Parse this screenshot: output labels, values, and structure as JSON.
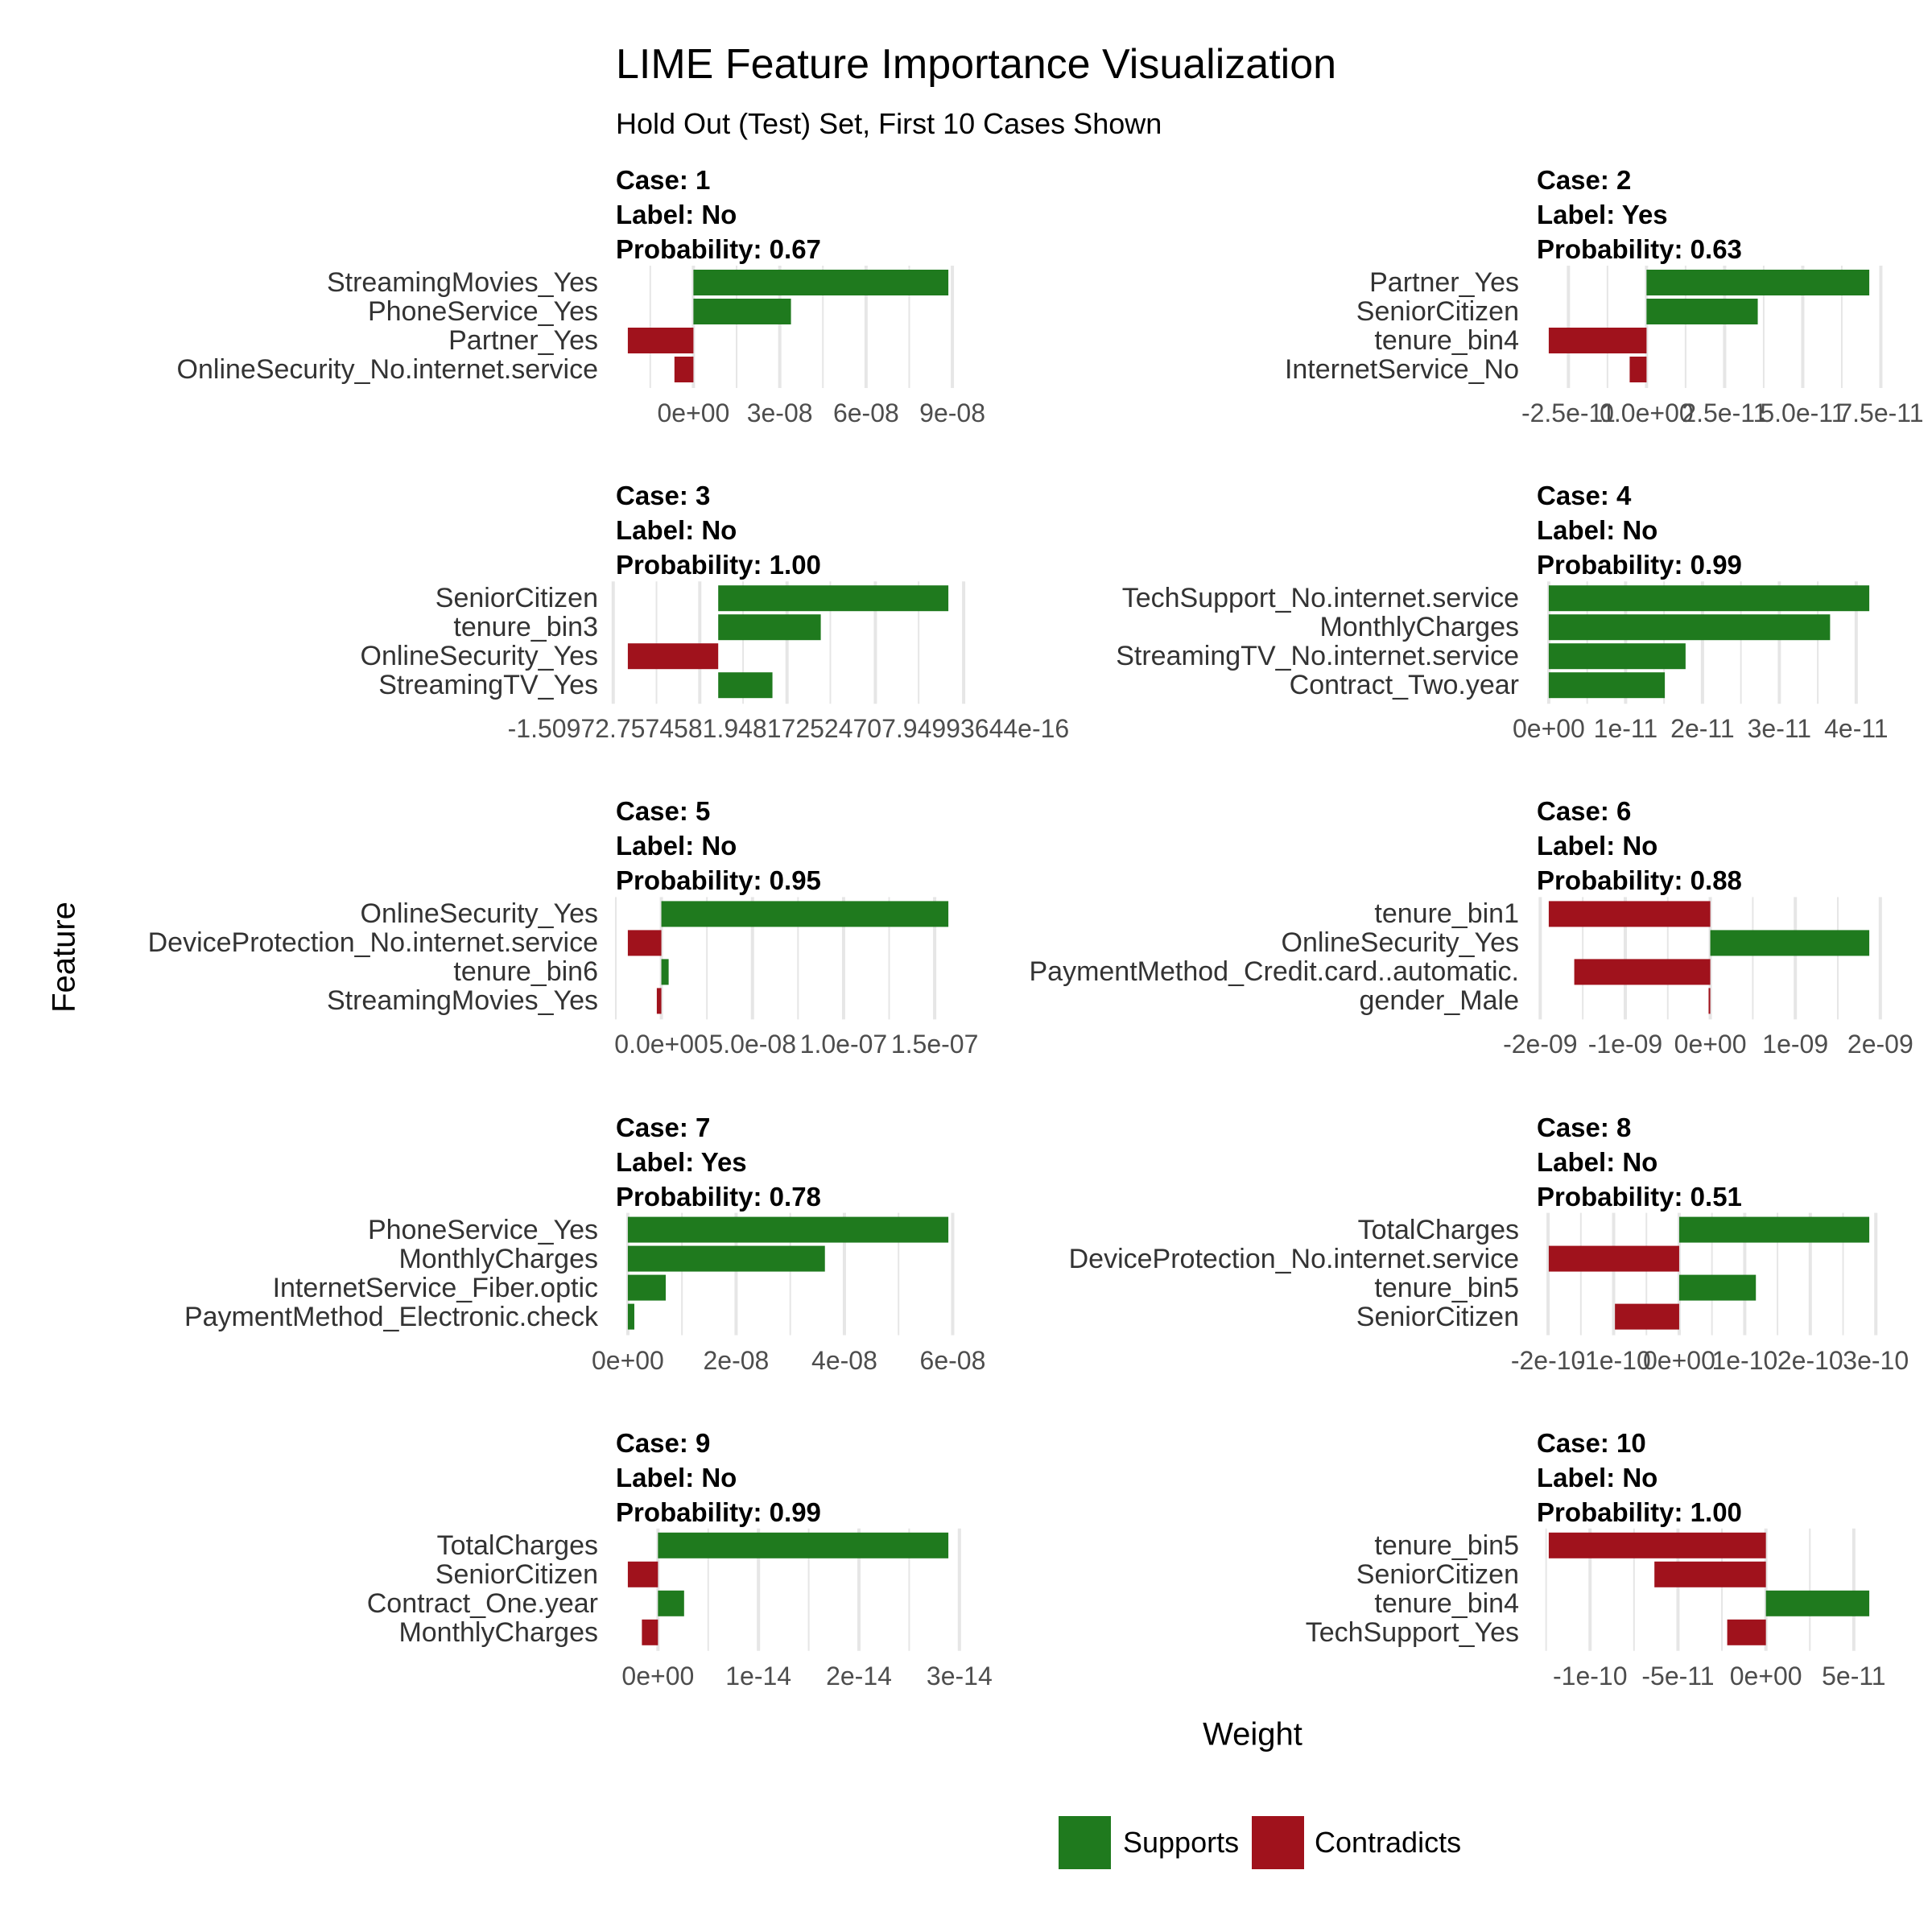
{
  "title": "LIME Feature Importance Visualization",
  "subtitle": "Hold Out (Test) Set, First 10 Cases Shown",
  "y_axis_label": "Feature",
  "x_axis_label": "Weight",
  "legend": {
    "items": [
      {
        "label": "Supports",
        "color": "#1f7a1e"
      },
      {
        "label": "Contradicts",
        "color": "#a0121c"
      }
    ]
  },
  "colors": {
    "gridline": "#e6e6e6",
    "supports": "#1f7a1e",
    "contradicts": "#a0121c"
  },
  "chart_data": [
    {
      "type": "bar",
      "case_title": "Case: 1",
      "label_title": "Label: No",
      "probability_title": "Probability: 0.67",
      "features": [
        "StreamingMovies_Yes",
        "PhoneService_Yes",
        "Partner_Yes",
        "OnlineSecurity_No.internet.service"
      ],
      "values": [
        8.86e-08,
        3.39e-08,
        -2.28e-08,
        -6.6e-09
      ],
      "ticks": [
        0,
        3e-08,
        6e-08,
        9e-08
      ],
      "tick_labels": [
        "0e+00",
        "3e-08",
        "6e-08",
        "9e-08"
      ]
    },
    {
      "type": "bar",
      "case_title": "Case: 2",
      "label_title": "Label: Yes",
      "probability_title": "Probability: 0.63",
      "features": [
        "Partner_Yes",
        "SeniorCitizen",
        "tenure_bin4",
        "InternetService_No"
      ],
      "values": [
        7.13e-11,
        3.56e-11,
        -3.13e-11,
        -5.4e-12
      ],
      "ticks": [
        -2.5e-11,
        0,
        2.5e-11,
        5e-11,
        7.5e-11
      ],
      "tick_labels": [
        "-2.5e-11",
        "0.0e+00",
        "2.5e-11",
        "5.0e-11",
        "7.5e-11"
      ]
    },
    {
      "type": "bar",
      "case_title": "Case: 3",
      "label_title": "Label: No",
      "probability_title": "Probability: 1.00",
      "features": [
        "SeniorCitizen",
        "tenure_bin3",
        "OnlineSecurity_Yes",
        "StreamingTV_Yes"
      ],
      "values": [
        3.31e-16,
        1.475e-16,
        -1.3e-16,
        7.8e-17
      ],
      "ticks": [
        -1.51e-16,
        -2.65e-17,
        9.9e-17,
        2.26e-16,
        3.53e-16
      ],
      "tick_labels_overlapped": "-1.50972.7574581.948172524707.94993644e-16"
    },
    {
      "type": "bar",
      "case_title": "Case: 4",
      "label_title": "Label: No",
      "probability_title": "Probability: 0.99",
      "features": [
        "TechSupport_No.internet.service",
        "MonthlyCharges",
        "StreamingTV_No.internet.service",
        "Contract_Two.year"
      ],
      "values": [
        4.17e-11,
        3.66e-11,
        1.78e-11,
        1.51e-11
      ],
      "ticks": [
        0,
        1e-11,
        2e-11,
        3e-11,
        4e-11
      ],
      "tick_labels": [
        "0e+00",
        "1e-11",
        "2e-11",
        "3e-11",
        "4e-11"
      ]
    },
    {
      "type": "bar",
      "case_title": "Case: 5",
      "label_title": "Label: No",
      "probability_title": "Probability: 0.95",
      "features": [
        "OnlineSecurity_Yes",
        "DeviceProtection_No.internet.service",
        "tenure_bin6",
        "StreamingMovies_Yes"
      ],
      "values": [
        1.575e-07,
        -1.84e-08,
        4e-09,
        -2.5e-09
      ],
      "ticks": [
        0,
        5e-08,
        1e-07,
        1.5e-07
      ],
      "tick_labels": [
        "0.0e+00",
        "5.0e-08",
        "1.0e-07",
        "1.5e-07"
      ]
    },
    {
      "type": "bar",
      "case_title": "Case: 6",
      "label_title": "Label: No",
      "probability_title": "Probability: 0.88",
      "features": [
        "tenure_bin1",
        "OnlineSecurity_Yes",
        "PaymentMethod_Credit.card..automatic.",
        "gender_Male"
      ],
      "values": [
        -1.9e-09,
        1.87e-09,
        -1.6e-09,
        -2e-11
      ],
      "ticks": [
        -2e-09,
        -1e-09,
        0,
        1e-09,
        2e-09
      ],
      "tick_labels": [
        "-2e-09",
        "-1e-09",
        "0e+00",
        "1e-09",
        "2e-09"
      ]
    },
    {
      "type": "bar",
      "case_title": "Case: 7",
      "label_title": "Label: Yes",
      "probability_title": "Probability: 0.78",
      "features": [
        "PhoneService_Yes",
        "MonthlyCharges",
        "InternetService_Fiber.optic",
        "PaymentMethod_Electronic.check"
      ],
      "values": [
        5.92e-08,
        3.64e-08,
        7e-09,
        1.2e-09
      ],
      "ticks": [
        0,
        2e-08,
        4e-08,
        6e-08
      ],
      "tick_labels": [
        "0e+00",
        "2e-08",
        "4e-08",
        "6e-08"
      ]
    },
    {
      "type": "bar",
      "case_title": "Case: 8",
      "label_title": "Label: No",
      "probability_title": "Probability: 0.51",
      "features": [
        "TotalCharges",
        "DeviceProtection_No.internet.service",
        "tenure_bin5",
        "SeniorCitizen"
      ],
      "values": [
        2.9e-10,
        -1.99e-10,
        1.17e-10,
        -9.8e-11
      ],
      "ticks": [
        -2e-10,
        -1e-10,
        0,
        1e-10,
        2e-10,
        3e-10
      ],
      "tick_labels": [
        "-2e-10",
        "-1e-10",
        "0e+00",
        "1e-10",
        "2e-10",
        "3e-10"
      ]
    },
    {
      "type": "bar",
      "case_title": "Case: 9",
      "label_title": "Label: No",
      "probability_title": "Probability: 0.99",
      "features": [
        "TotalCharges",
        "SeniorCitizen",
        "Contract_One.year",
        "MonthlyCharges"
      ],
      "values": [
        2.89e-14,
        -3e-15,
        2.6e-15,
        -1.6e-15
      ],
      "ticks": [
        0,
        1e-14,
        2e-14,
        3e-14
      ],
      "tick_labels": [
        "0e+00",
        "1e-14",
        "2e-14",
        "3e-14"
      ]
    },
    {
      "type": "bar",
      "case_title": "Case: 10",
      "label_title": "Label: No",
      "probability_title": "Probability: 1.00",
      "features": [
        "tenure_bin5",
        "SeniorCitizen",
        "tenure_bin4",
        "TechSupport_Yes"
      ],
      "values": [
        -1.235e-10,
        -6.34e-11,
        5.88e-11,
        -2.2e-11
      ],
      "ticks": [
        -1e-10,
        -5e-11,
        0,
        5e-11
      ],
      "tick_labels": [
        "-1e-10",
        "-5e-11",
        "0e+00",
        "5e-11"
      ]
    }
  ]
}
